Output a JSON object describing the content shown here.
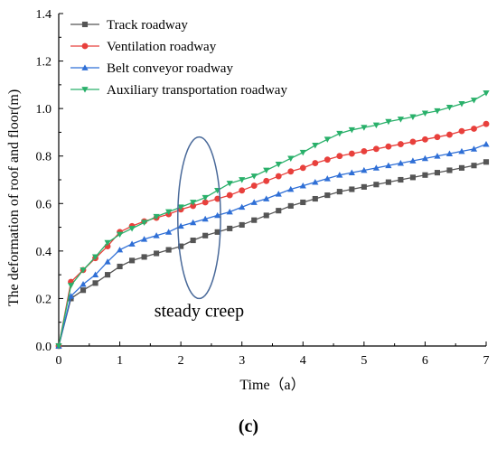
{
  "chart_data": {
    "type": "line",
    "xlabel": "Time（a）",
    "ylabel": "The deformation of roof and floor(m)",
    "xlim": [
      0,
      7
    ],
    "ylim": [
      0,
      1.4
    ],
    "xticks": [
      "0",
      "1",
      "2",
      "3",
      "4",
      "5",
      "6",
      "7"
    ],
    "yticks": [
      "0.0",
      "0.2",
      "0.4",
      "0.6",
      "0.8",
      "1.0",
      "1.2",
      "1.4"
    ],
    "grid": false,
    "legend_position": "top-left",
    "x": [
      0,
      0.2,
      0.4,
      0.6,
      0.8,
      1.0,
      1.2,
      1.4,
      1.6,
      1.8,
      2.0,
      2.2,
      2.4,
      2.6,
      2.8,
      3.0,
      3.2,
      3.4,
      3.6,
      3.8,
      4.0,
      4.2,
      4.4,
      4.6,
      4.8,
      5.0,
      5.2,
      5.4,
      5.6,
      5.8,
      6.0,
      6.2,
      6.4,
      6.6,
      6.8,
      7.0
    ],
    "series": [
      {
        "name": "Track roadway",
        "color": "#555555",
        "marker": "square",
        "values": [
          0.0,
          0.2,
          0.235,
          0.265,
          0.3,
          0.335,
          0.36,
          0.375,
          0.39,
          0.405,
          0.42,
          0.445,
          0.465,
          0.48,
          0.495,
          0.51,
          0.53,
          0.55,
          0.57,
          0.59,
          0.605,
          0.62,
          0.635,
          0.65,
          0.66,
          0.67,
          0.68,
          0.69,
          0.7,
          0.71,
          0.72,
          0.73,
          0.74,
          0.75,
          0.76,
          0.775
        ]
      },
      {
        "name": "Ventilation roadway",
        "color": "#e8403c",
        "marker": "circle",
        "values": [
          0.0,
          0.27,
          0.32,
          0.37,
          0.42,
          0.48,
          0.505,
          0.525,
          0.54,
          0.555,
          0.575,
          0.59,
          0.605,
          0.62,
          0.635,
          0.655,
          0.675,
          0.695,
          0.715,
          0.735,
          0.75,
          0.77,
          0.785,
          0.8,
          0.81,
          0.82,
          0.83,
          0.84,
          0.85,
          0.86,
          0.87,
          0.88,
          0.89,
          0.905,
          0.915,
          0.935
        ]
      },
      {
        "name": "Belt conveyor roadway",
        "color": "#2f6fd6",
        "marker": "triangle-up",
        "values": [
          0.0,
          0.21,
          0.26,
          0.3,
          0.355,
          0.405,
          0.43,
          0.45,
          0.465,
          0.48,
          0.505,
          0.52,
          0.535,
          0.55,
          0.565,
          0.585,
          0.605,
          0.62,
          0.64,
          0.66,
          0.675,
          0.69,
          0.705,
          0.72,
          0.73,
          0.74,
          0.75,
          0.76,
          0.77,
          0.78,
          0.79,
          0.8,
          0.81,
          0.82,
          0.83,
          0.85
        ]
      },
      {
        "name": "Auxiliary transportation roadway",
        "color": "#29b06a",
        "marker": "triangle-down",
        "values": [
          0.0,
          0.255,
          0.32,
          0.375,
          0.435,
          0.47,
          0.495,
          0.52,
          0.545,
          0.565,
          0.585,
          0.605,
          0.625,
          0.655,
          0.685,
          0.7,
          0.715,
          0.74,
          0.765,
          0.79,
          0.815,
          0.845,
          0.87,
          0.895,
          0.91,
          0.92,
          0.93,
          0.945,
          0.955,
          0.965,
          0.98,
          0.99,
          1.005,
          1.02,
          1.035,
          1.065
        ]
      }
    ],
    "annotations": [
      {
        "text": "steady creep",
        "shape": "ellipse",
        "x_center": 2.3,
        "y_center": 0.54,
        "x_radius": 0.35,
        "y_radius": 0.34
      }
    ],
    "panel_label": "(c)"
  }
}
